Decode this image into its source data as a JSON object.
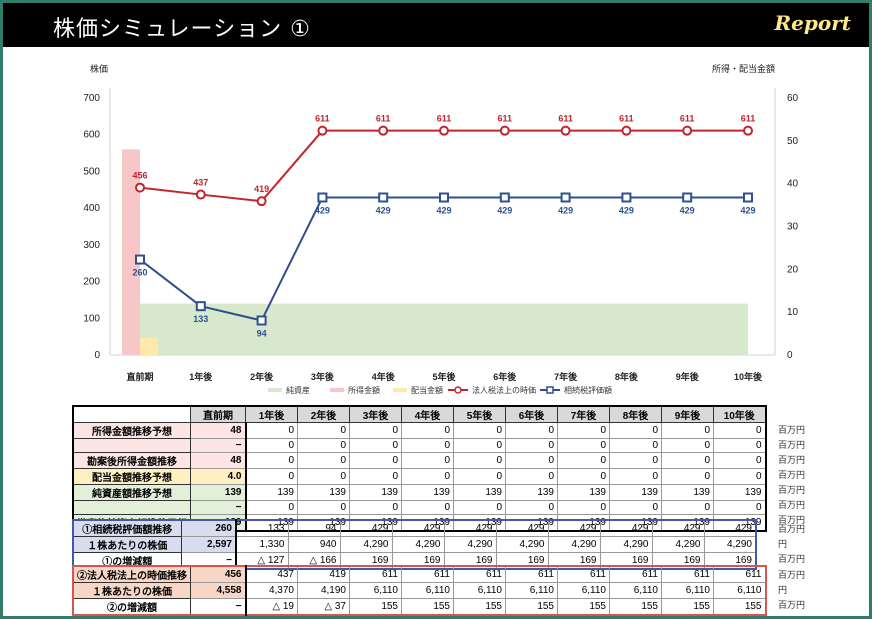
{
  "header": {
    "title": "株価シミュレーション ①",
    "report_label": "Report"
  },
  "colors": {
    "red_line": "#c0262d",
    "blue_line": "#2f4f8f",
    "pink_bar": "#f6c6c8",
    "yellow_bar": "#ffe9a8",
    "green_area": "#d8e8cc"
  },
  "chart_data": {
    "type": "line",
    "categories": [
      "直前期",
      "1年後",
      "2年後",
      "3年後",
      "4年後",
      "5年後",
      "6年後",
      "7年後",
      "8年後",
      "9年後",
      "10年後"
    ],
    "left_axis": {
      "label": "株価",
      "ylim": [
        0,
        700
      ],
      "ticks": [
        "0",
        "100",
        "200",
        "300",
        "400",
        "500",
        "600",
        "700"
      ]
    },
    "right_axis": {
      "label": "所得・配当金額",
      "ylim": [
        0,
        60
      ],
      "ticks": [
        "0",
        "10",
        "20",
        "30",
        "40",
        "50",
        "60"
      ]
    },
    "series": [
      {
        "name": "法人税法上の時価",
        "axis": "left",
        "values": [
          456,
          437,
          419,
          611,
          611,
          611,
          611,
          611,
          611,
          611,
          611
        ],
        "labels": [
          "456",
          "437",
          "419",
          "611",
          "611",
          "611",
          "611",
          "611",
          "611",
          "611",
          "611"
        ]
      },
      {
        "name": "相続税評価額",
        "axis": "left",
        "values": [
          260,
          133,
          94,
          429,
          429,
          429,
          429,
          429,
          429,
          429,
          429
        ],
        "labels": [
          "260",
          "133",
          "94",
          "429",
          "429",
          "429",
          "429",
          "429",
          "429",
          "429",
          "429"
        ]
      },
      {
        "name": "純資産",
        "axis": "right",
        "type": "area",
        "values": [
          12,
          12,
          12,
          12,
          12,
          12,
          12,
          12,
          12,
          12,
          12
        ]
      },
      {
        "name": "所得金額",
        "axis": "right",
        "type": "bar",
        "values": [
          48,
          0,
          0,
          0,
          0,
          0,
          0,
          0,
          0,
          0,
          0
        ]
      },
      {
        "name": "配当金額",
        "axis": "right",
        "type": "bar",
        "values": [
          4,
          0,
          0,
          0,
          0,
          0,
          0,
          0,
          0,
          0,
          0
        ]
      }
    ],
    "legend": [
      "純資産",
      "所得金額",
      "配当金額",
      "法人税法上の時価",
      "相続税評価額"
    ],
    "grid": false,
    "legend_position": "bottom"
  },
  "table1": {
    "headers": [
      "",
      "直前期",
      "1年後",
      "2年後",
      "3年後",
      "4年後",
      "5年後",
      "6年後",
      "7年後",
      "8年後",
      "9年後",
      "10年後"
    ],
    "rows": [
      {
        "label": "所得金額推移予想",
        "cells": [
          "48",
          "0",
          "0",
          "0",
          "0",
          "0",
          "0",
          "0",
          "0",
          "0",
          "0"
        ],
        "unit": "百万円",
        "color": "#fde5e6"
      },
      {
        "label": "",
        "cells": [
          "−",
          "0",
          "0",
          "0",
          "0",
          "0",
          "0",
          "0",
          "0",
          "0",
          "0"
        ],
        "unit": "百万円",
        "color": "#fde5e6"
      },
      {
        "label": "勘案後所得金額推移",
        "cells": [
          "48",
          "0",
          "0",
          "0",
          "0",
          "0",
          "0",
          "0",
          "0",
          "0",
          "0"
        ],
        "unit": "百万円",
        "color": "#fde5e6"
      },
      {
        "label": "配当金額推移予想",
        "cells": [
          "4.0",
          "0",
          "0",
          "0",
          "0",
          "0",
          "0",
          "0",
          "0",
          "0",
          "0"
        ],
        "unit": "百万円",
        "color": "#fff0c2"
      },
      {
        "label": "純資産額推移予想",
        "cells": [
          "139",
          "139",
          "139",
          "139",
          "139",
          "139",
          "139",
          "139",
          "139",
          "139",
          "139"
        ],
        "unit": "百万円",
        "color": "#e2efd9"
      },
      {
        "label": "",
        "cells": [
          "−",
          "0",
          "0",
          "0",
          "0",
          "0",
          "0",
          "0",
          "0",
          "0",
          "0"
        ],
        "unit": "百万円",
        "color": "#e2efd9"
      },
      {
        "label": "勘案後純資産額推移予想",
        "cells": [
          "139",
          "139",
          "139",
          "139",
          "139",
          "139",
          "139",
          "139",
          "139",
          "139",
          "139"
        ],
        "unit": "百万円",
        "color": "#e2efd9"
      }
    ]
  },
  "table2": {
    "rows": [
      {
        "label": "①相続税評価額推移",
        "cells": [
          "260",
          "133",
          "94",
          "429",
          "429",
          "429",
          "429",
          "429",
          "429",
          "429",
          "429"
        ],
        "unit": "百万円",
        "color": "#d9dcef"
      },
      {
        "label": "１株あたりの株価",
        "cells": [
          "2,597",
          "1,330",
          "940",
          "4,290",
          "4,290",
          "4,290",
          "4,290",
          "4,290",
          "4,290",
          "4,290",
          "4,290"
        ],
        "unit": "円",
        "color": "#d9dcef"
      },
      {
        "label": "①の増減額",
        "cells": [
          "−",
          "△ 127",
          "△ 166",
          "169",
          "169",
          "169",
          "169",
          "169",
          "169",
          "169",
          "169"
        ],
        "unit": "百万円",
        "color": "#ffffff"
      }
    ]
  },
  "table3": {
    "rows": [
      {
        "label": "②法人税法上の時価推移",
        "cells": [
          "456",
          "437",
          "419",
          "611",
          "611",
          "611",
          "611",
          "611",
          "611",
          "611",
          "611"
        ],
        "unit": "百万円",
        "color": "#f7d6c6"
      },
      {
        "label": "１株あたりの株価",
        "cells": [
          "4,558",
          "4,370",
          "4,190",
          "6,110",
          "6,110",
          "6,110",
          "6,110",
          "6,110",
          "6,110",
          "6,110",
          "6,110"
        ],
        "unit": "円",
        "color": "#f7d6c6"
      },
      {
        "label": "②の増減額",
        "cells": [
          "−",
          "△ 19",
          "△ 37",
          "155",
          "155",
          "155",
          "155",
          "155",
          "155",
          "155",
          "155"
        ],
        "unit": "百万円",
        "color": "#ffffff"
      }
    ]
  }
}
